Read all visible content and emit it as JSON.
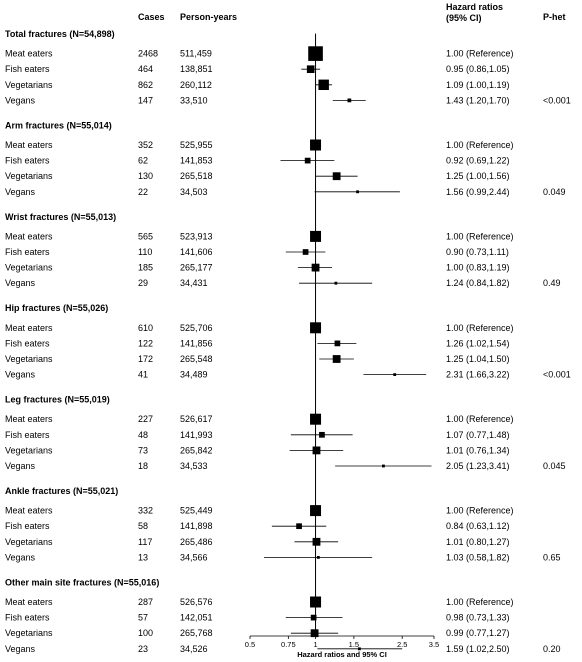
{
  "headers": {
    "cases": "Cases",
    "person_years": "Person-years",
    "hr_line1": "Hazard ratios",
    "hr_line2": "(95% CI)",
    "phet": "P-het"
  },
  "chart_data": {
    "type": "forest",
    "x_scale": "log",
    "xlim": [
      0.5,
      3.5
    ],
    "xlabel": "Hazard ratios and 95% CI",
    "x_ticks": [
      {
        "value": 0.5,
        "label": "0.5"
      },
      {
        "value": 0.75,
        "label": "0.75"
      },
      {
        "value": 1,
        "label": "1"
      },
      {
        "value": 1.5,
        "label": "1.5"
      },
      {
        "value": 2.5,
        "label": "2.5"
      },
      {
        "value": 3.5,
        "label": "3.5"
      }
    ],
    "reference_line": 1,
    "groups": [
      {
        "title": "Total fractures (N=54,898)",
        "phet": "<0.001",
        "rows": [
          {
            "diet": "Meat eaters",
            "cases": "2468",
            "person_years": "511,459",
            "hr": 1.0,
            "lo": 1.0,
            "hi": 1.0,
            "ci_text": "1.00 (Reference)"
          },
          {
            "diet": "Fish eaters",
            "cases": "464",
            "person_years": "138,851",
            "hr": 0.95,
            "lo": 0.86,
            "hi": 1.05,
            "ci_text": "0.95 (0.86,1.05)"
          },
          {
            "diet": "Vegetarians",
            "cases": "862",
            "person_years": "260,112",
            "hr": 1.09,
            "lo": 1.0,
            "hi": 1.19,
            "ci_text": "1.09 (1.00,1.19)"
          },
          {
            "diet": "Vegans",
            "cases": "147",
            "person_years": "33,510",
            "hr": 1.43,
            "lo": 1.2,
            "hi": 1.7,
            "ci_text": "1.43 (1.20,1.70)"
          }
        ]
      },
      {
        "title": "Arm fractures (N=55,014)",
        "phet": "0.049",
        "rows": [
          {
            "diet": "Meat eaters",
            "cases": "352",
            "person_years": "525,955",
            "hr": 1.0,
            "lo": 1.0,
            "hi": 1.0,
            "ci_text": "1.00 (Reference)"
          },
          {
            "diet": "Fish eaters",
            "cases": "62",
            "person_years": "141,853",
            "hr": 0.92,
            "lo": 0.69,
            "hi": 1.22,
            "ci_text": "0.92 (0.69,1.22)"
          },
          {
            "diet": "Vegetarians",
            "cases": "130",
            "person_years": "265,518",
            "hr": 1.25,
            "lo": 1.0,
            "hi": 1.56,
            "ci_text": "1.25 (1.00,1.56)"
          },
          {
            "diet": "Vegans",
            "cases": "22",
            "person_years": "34,503",
            "hr": 1.56,
            "lo": 0.99,
            "hi": 2.44,
            "ci_text": "1.56 (0.99,2.44)"
          }
        ]
      },
      {
        "title": "Wrist fractures (N=55,013)",
        "phet": "0.49",
        "rows": [
          {
            "diet": "Meat eaters",
            "cases": "565",
            "person_years": "523,913",
            "hr": 1.0,
            "lo": 1.0,
            "hi": 1.0,
            "ci_text": "1.00 (Reference)"
          },
          {
            "diet": "Fish eaters",
            "cases": "110",
            "person_years": "141,606",
            "hr": 0.9,
            "lo": 0.73,
            "hi": 1.11,
            "ci_text": "0.90 (0.73,1.11)"
          },
          {
            "diet": "Vegetarians",
            "cases": "185",
            "person_years": "265,177",
            "hr": 1.0,
            "lo": 0.83,
            "hi": 1.19,
            "ci_text": "1.00 (0.83,1.19)"
          },
          {
            "diet": "Vegans",
            "cases": "29",
            "person_years": "34,431",
            "hr": 1.24,
            "lo": 0.84,
            "hi": 1.82,
            "ci_text": "1.24 (0.84,1.82)"
          }
        ]
      },
      {
        "title": "Hip fractures (N=55,026)",
        "phet": "<0.001",
        "rows": [
          {
            "diet": "Meat eaters",
            "cases": "610",
            "person_years": "525,706",
            "hr": 1.0,
            "lo": 1.0,
            "hi": 1.0,
            "ci_text": "1.00 (Reference)"
          },
          {
            "diet": "Fish eaters",
            "cases": "122",
            "person_years": "141,856",
            "hr": 1.26,
            "lo": 1.02,
            "hi": 1.54,
            "ci_text": "1.26 (1.02,1.54)"
          },
          {
            "diet": "Vegetarians",
            "cases": "172",
            "person_years": "265,548",
            "hr": 1.25,
            "lo": 1.04,
            "hi": 1.5,
            "ci_text": "1.25 (1.04,1.50)"
          },
          {
            "diet": "Vegans",
            "cases": "41",
            "person_years": "34,489",
            "hr": 2.31,
            "lo": 1.66,
            "hi": 3.22,
            "ci_text": "2.31 (1.66,3.22)"
          }
        ]
      },
      {
        "title": "Leg fractures (N=55,019)",
        "phet": "0.045",
        "rows": [
          {
            "diet": "Meat eaters",
            "cases": "227",
            "person_years": "526,617",
            "hr": 1.0,
            "lo": 1.0,
            "hi": 1.0,
            "ci_text": "1.00 (Reference)"
          },
          {
            "diet": "Fish eaters",
            "cases": "48",
            "person_years": "141,993",
            "hr": 1.07,
            "lo": 0.77,
            "hi": 1.48,
            "ci_text": "1.07 (0.77,1.48)"
          },
          {
            "diet": "Vegetarians",
            "cases": "73",
            "person_years": "265,842",
            "hr": 1.01,
            "lo": 0.76,
            "hi": 1.34,
            "ci_text": "1.01 (0.76,1.34)"
          },
          {
            "diet": "Vegans",
            "cases": "18",
            "person_years": "34,533",
            "hr": 2.05,
            "lo": 1.23,
            "hi": 3.41,
            "ci_text": "2.05 (1.23,3.41)"
          }
        ]
      },
      {
        "title": "Ankle fractures (N=55,021)",
        "phet": "0.65",
        "rows": [
          {
            "diet": "Meat eaters",
            "cases": "332",
            "person_years": "525,449",
            "hr": 1.0,
            "lo": 1.0,
            "hi": 1.0,
            "ci_text": "1.00 (Reference)"
          },
          {
            "diet": "Fish eaters",
            "cases": "58",
            "person_years": "141,898",
            "hr": 0.84,
            "lo": 0.63,
            "hi": 1.12,
            "ci_text": "0.84 (0.63,1.12)"
          },
          {
            "diet": "Vegetarians",
            "cases": "117",
            "person_years": "265,486",
            "hr": 1.01,
            "lo": 0.8,
            "hi": 1.27,
            "ci_text": "1.01 (0.80,1.27)"
          },
          {
            "diet": "Vegans",
            "cases": "13",
            "person_years": "34,566",
            "hr": 1.03,
            "lo": 0.58,
            "hi": 1.82,
            "ci_text": "1.03 (0.58,1.82)"
          }
        ]
      },
      {
        "title": "Other main site fractures (N=55,016)",
        "phet": "0.20",
        "rows": [
          {
            "diet": "Meat eaters",
            "cases": "287",
            "person_years": "526,576",
            "hr": 1.0,
            "lo": 1.0,
            "hi": 1.0,
            "ci_text": "1.00 (Reference)"
          },
          {
            "diet": "Fish eaters",
            "cases": "57",
            "person_years": "142,051",
            "hr": 0.98,
            "lo": 0.73,
            "hi": 1.33,
            "ci_text": "0.98 (0.73,1.33)"
          },
          {
            "diet": "Vegetarians",
            "cases": "100",
            "person_years": "265,768",
            "hr": 0.99,
            "lo": 0.77,
            "hi": 1.27,
            "ci_text": "0.99 (0.77,1.27)"
          },
          {
            "diet": "Vegans",
            "cases": "23",
            "person_years": "34,526",
            "hr": 1.59,
            "lo": 1.02,
            "hi": 2.5,
            "ci_text": "1.59 (1.02,2.50)"
          }
        ]
      }
    ]
  }
}
